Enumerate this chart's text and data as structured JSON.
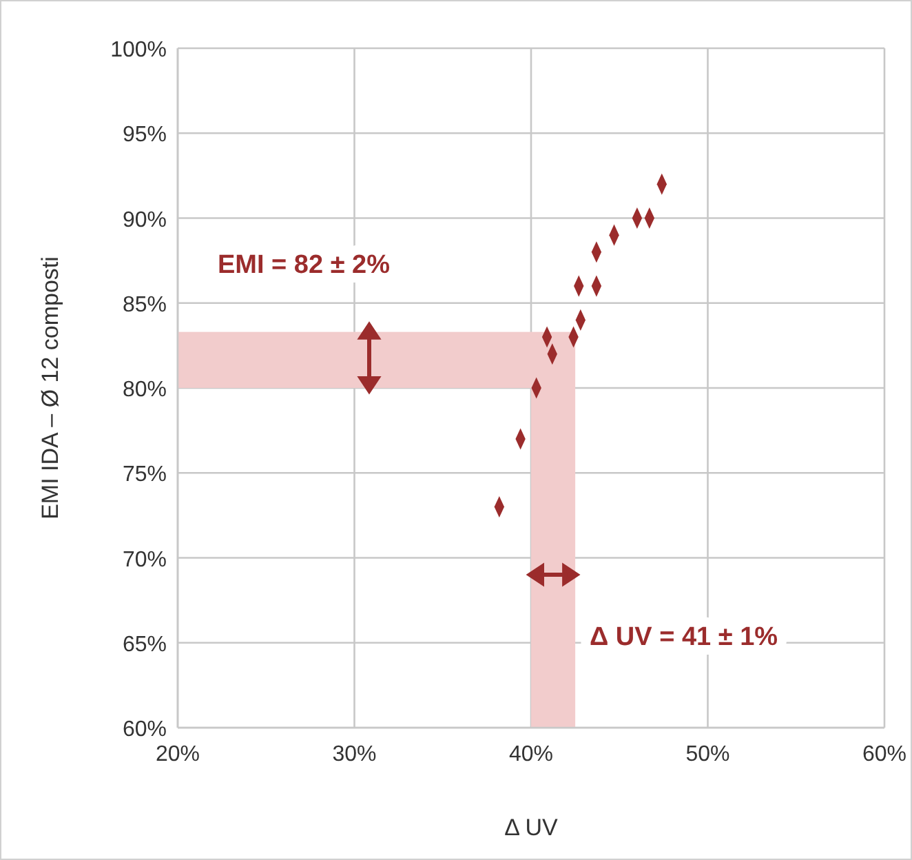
{
  "chart_data": {
    "type": "scatter",
    "xlabel": "Δ UV",
    "ylabel": "EMI IDA – Ø 12  composti",
    "series": [
      {
        "color": "#9b2c2c",
        "x": [
          47.4,
          46.0,
          46.7,
          44.7,
          43.7,
          42.7,
          43.7,
          42.8,
          40.9,
          42.4,
          41.2,
          40.3,
          39.4,
          38.2
        ],
        "values": [
          92,
          90,
          90,
          89,
          88,
          86,
          86,
          84,
          83,
          83,
          82,
          80,
          77,
          73
        ]
      }
    ],
    "xlim": [
      20,
      60
    ],
    "ylim": [
      60,
      100
    ],
    "xticks": [
      {
        "value": 20,
        "label": "20%"
      },
      {
        "value": 30,
        "label": "30%"
      },
      {
        "value": 40,
        "label": "40%"
      },
      {
        "value": 50,
        "label": "50%"
      },
      {
        "value": 60,
        "label": "60%"
      }
    ],
    "yticks": [
      {
        "value": 60,
        "label": "60%"
      },
      {
        "value": 65,
        "label": "65%"
      },
      {
        "value": 70,
        "label": "70%"
      },
      {
        "value": 75,
        "label": "75%"
      },
      {
        "value": 80,
        "label": "80%"
      },
      {
        "value": 85,
        "label": "85%"
      },
      {
        "value": 90,
        "label": "90%"
      },
      {
        "value": 95,
        "label": "95%"
      },
      {
        "value": 100,
        "label": "100%"
      }
    ],
    "bands": [
      {
        "axis": "y",
        "from": 80,
        "to": 83.3,
        "color": "#f2cccc"
      },
      {
        "axis": "x",
        "from": 40,
        "to": 42.5,
        "color": "#f2cccc"
      }
    ],
    "annotations": [
      "EMI = 82 ± 2%",
      "Δ UV = 41 ± 1%"
    ],
    "grid": true,
    "marker": "diamond"
  }
}
